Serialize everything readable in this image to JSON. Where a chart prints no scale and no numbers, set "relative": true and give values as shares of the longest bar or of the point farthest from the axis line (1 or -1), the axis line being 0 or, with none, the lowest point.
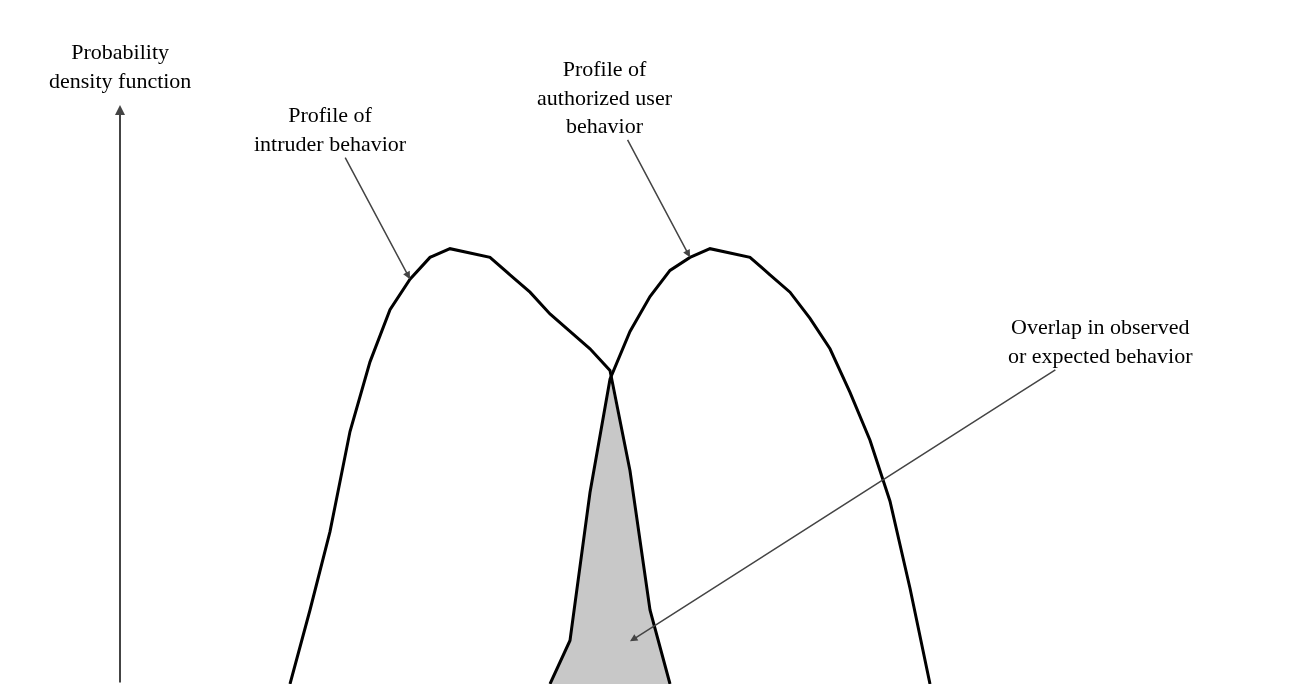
{
  "chart_data": {
    "type": "line",
    "relative": true,
    "marker": "none",
    "line_style": "solid",
    "categories": [
      null,
      null,
      null,
      null,
      null,
      null,
      null,
      null,
      null,
      null,
      null,
      null,
      null,
      null,
      null,
      null,
      null,
      null,
      null,
      null,
      null,
      null,
      null,
      null,
      null,
      null,
      null,
      null,
      null,
      null,
      null,
      null,
      null
    ],
    "series": [
      {
        "type": "area",
        "color": "#c8c8c8",
        "values": [
          null,
          null,
          null,
          null,
          null,
          null,
          null,
          null,
          null,
          null,
          null,
          null,
          null,
          0,
          0.1,
          0.44,
          0.7,
          0.49,
          0.17,
          0,
          null,
          null,
          null,
          null,
          null,
          null,
          null,
          null,
          null,
          null,
          null,
          null,
          null
        ]
      },
      {
        "color": "#000000",
        "values": [
          0,
          0.17,
          0.35,
          0.58,
          0.74,
          0.86,
          0.93,
          0.98,
          1,
          0.99,
          0.98,
          0.94,
          0.9,
          0.85,
          0.81,
          0.77,
          0.72,
          0.49,
          0.17,
          0,
          null,
          null,
          null,
          null,
          null,
          null,
          null,
          null,
          null,
          null,
          null,
          null,
          null
        ]
      },
      {
        "color": "#000000",
        "values": [
          null,
          null,
          null,
          null,
          null,
          null,
          null,
          null,
          null,
          null,
          null,
          null,
          null,
          0,
          0.1,
          0.44,
          0.7,
          0.81,
          0.89,
          0.95,
          0.98,
          1,
          0.99,
          0.98,
          0.94,
          0.9,
          0.84,
          0.77,
          0.67,
          0.56,
          0.42,
          0.22,
          0
        ]
      }
    ],
    "annotations": [
      "Probability\ndensity function",
      "Profile of\nintruder behavior",
      "Profile of\nauthorized user\nbehavior",
      "Overlap in observed\nor expected behavior"
    ]
  }
}
